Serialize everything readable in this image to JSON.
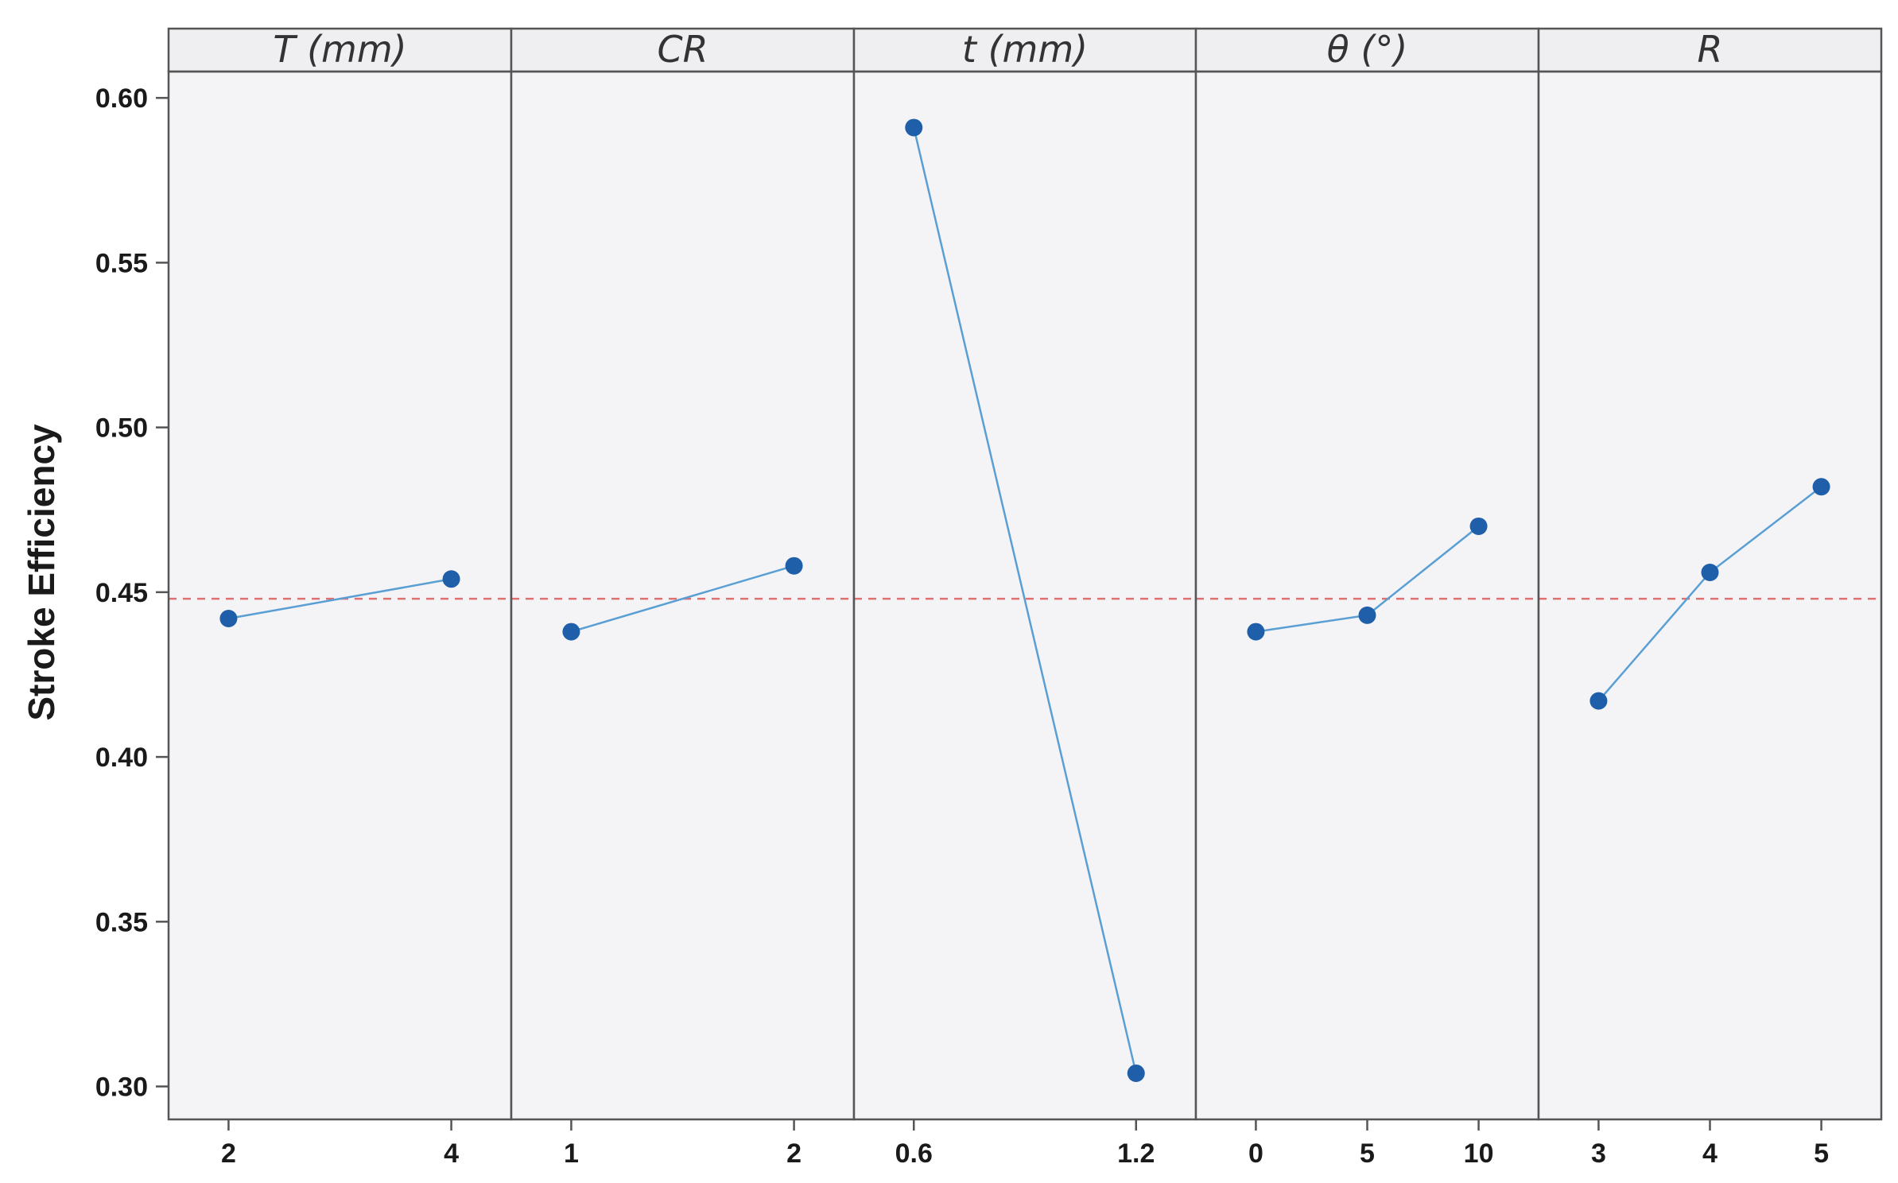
{
  "chart_data": {
    "type": "line",
    "ylabel": "Stroke Efficiency",
    "ylim": [
      0.29,
      0.608
    ],
    "yticks": [
      "0.60",
      "0.55",
      "0.50",
      "0.45",
      "0.40",
      "0.35",
      "0.30"
    ],
    "reference_line": 0.448,
    "grid": false,
    "colors": {
      "series": "#1f5faa",
      "line": "#5a9fd4",
      "reference": "#e0706f"
    },
    "panels": [
      {
        "factor": "T (mm)",
        "levels": [
          "2",
          "4"
        ],
        "values": [
          0.442,
          0.454
        ]
      },
      {
        "factor": "CR",
        "levels": [
          "1",
          "2"
        ],
        "values": [
          0.438,
          0.458
        ]
      },
      {
        "factor": "t (mm)",
        "levels": [
          "0.6",
          "1.2"
        ],
        "values": [
          0.591,
          0.304
        ]
      },
      {
        "factor": "θ (°)",
        "levels": [
          "0",
          "5",
          "10"
        ],
        "values": [
          0.438,
          0.443,
          0.47
        ]
      },
      {
        "factor": "R",
        "levels": [
          "3",
          "4",
          "5"
        ],
        "values": [
          0.417,
          0.456,
          0.482
        ]
      }
    ]
  }
}
